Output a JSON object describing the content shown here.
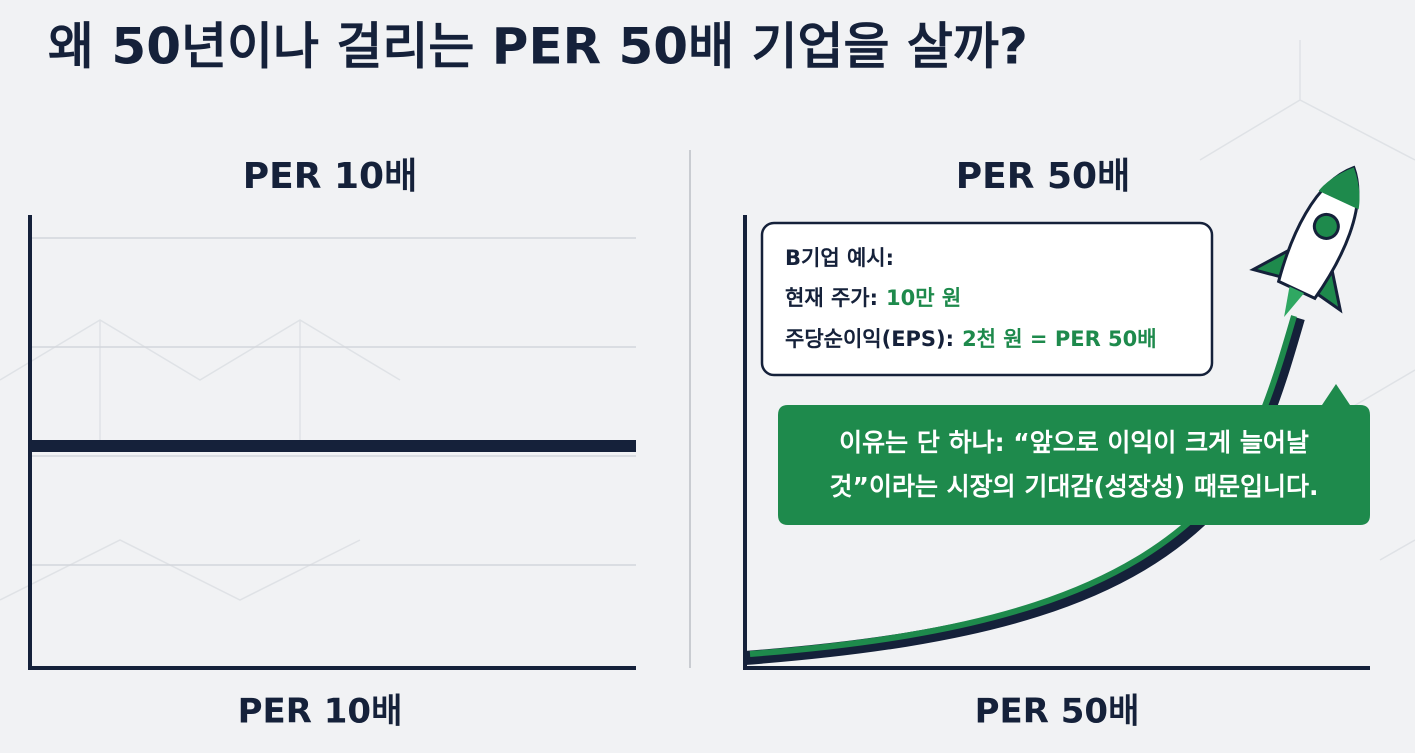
{
  "title": "왜 50년이나 걸리는 PER 50배 기업을 살까?",
  "panels": [
    {
      "heading": "PER 10배",
      "footer": "PER 10배"
    },
    {
      "heading": "PER 50배",
      "footer": "PER 50배"
    }
  ],
  "info_box": {
    "label": "B기업 예시:",
    "price_label": "현재 주가:",
    "price": "10만 원",
    "eps_label": "주당순이익(EPS):",
    "eps": "2천 원 = PER 50배"
  },
  "callout": {
    "lines": [
      "이유는 단 하나: “앞으로 이익이 크게 늘어날",
      "것”이라는 시장의 기대감(성장성) 때문입니다."
    ]
  }
}
